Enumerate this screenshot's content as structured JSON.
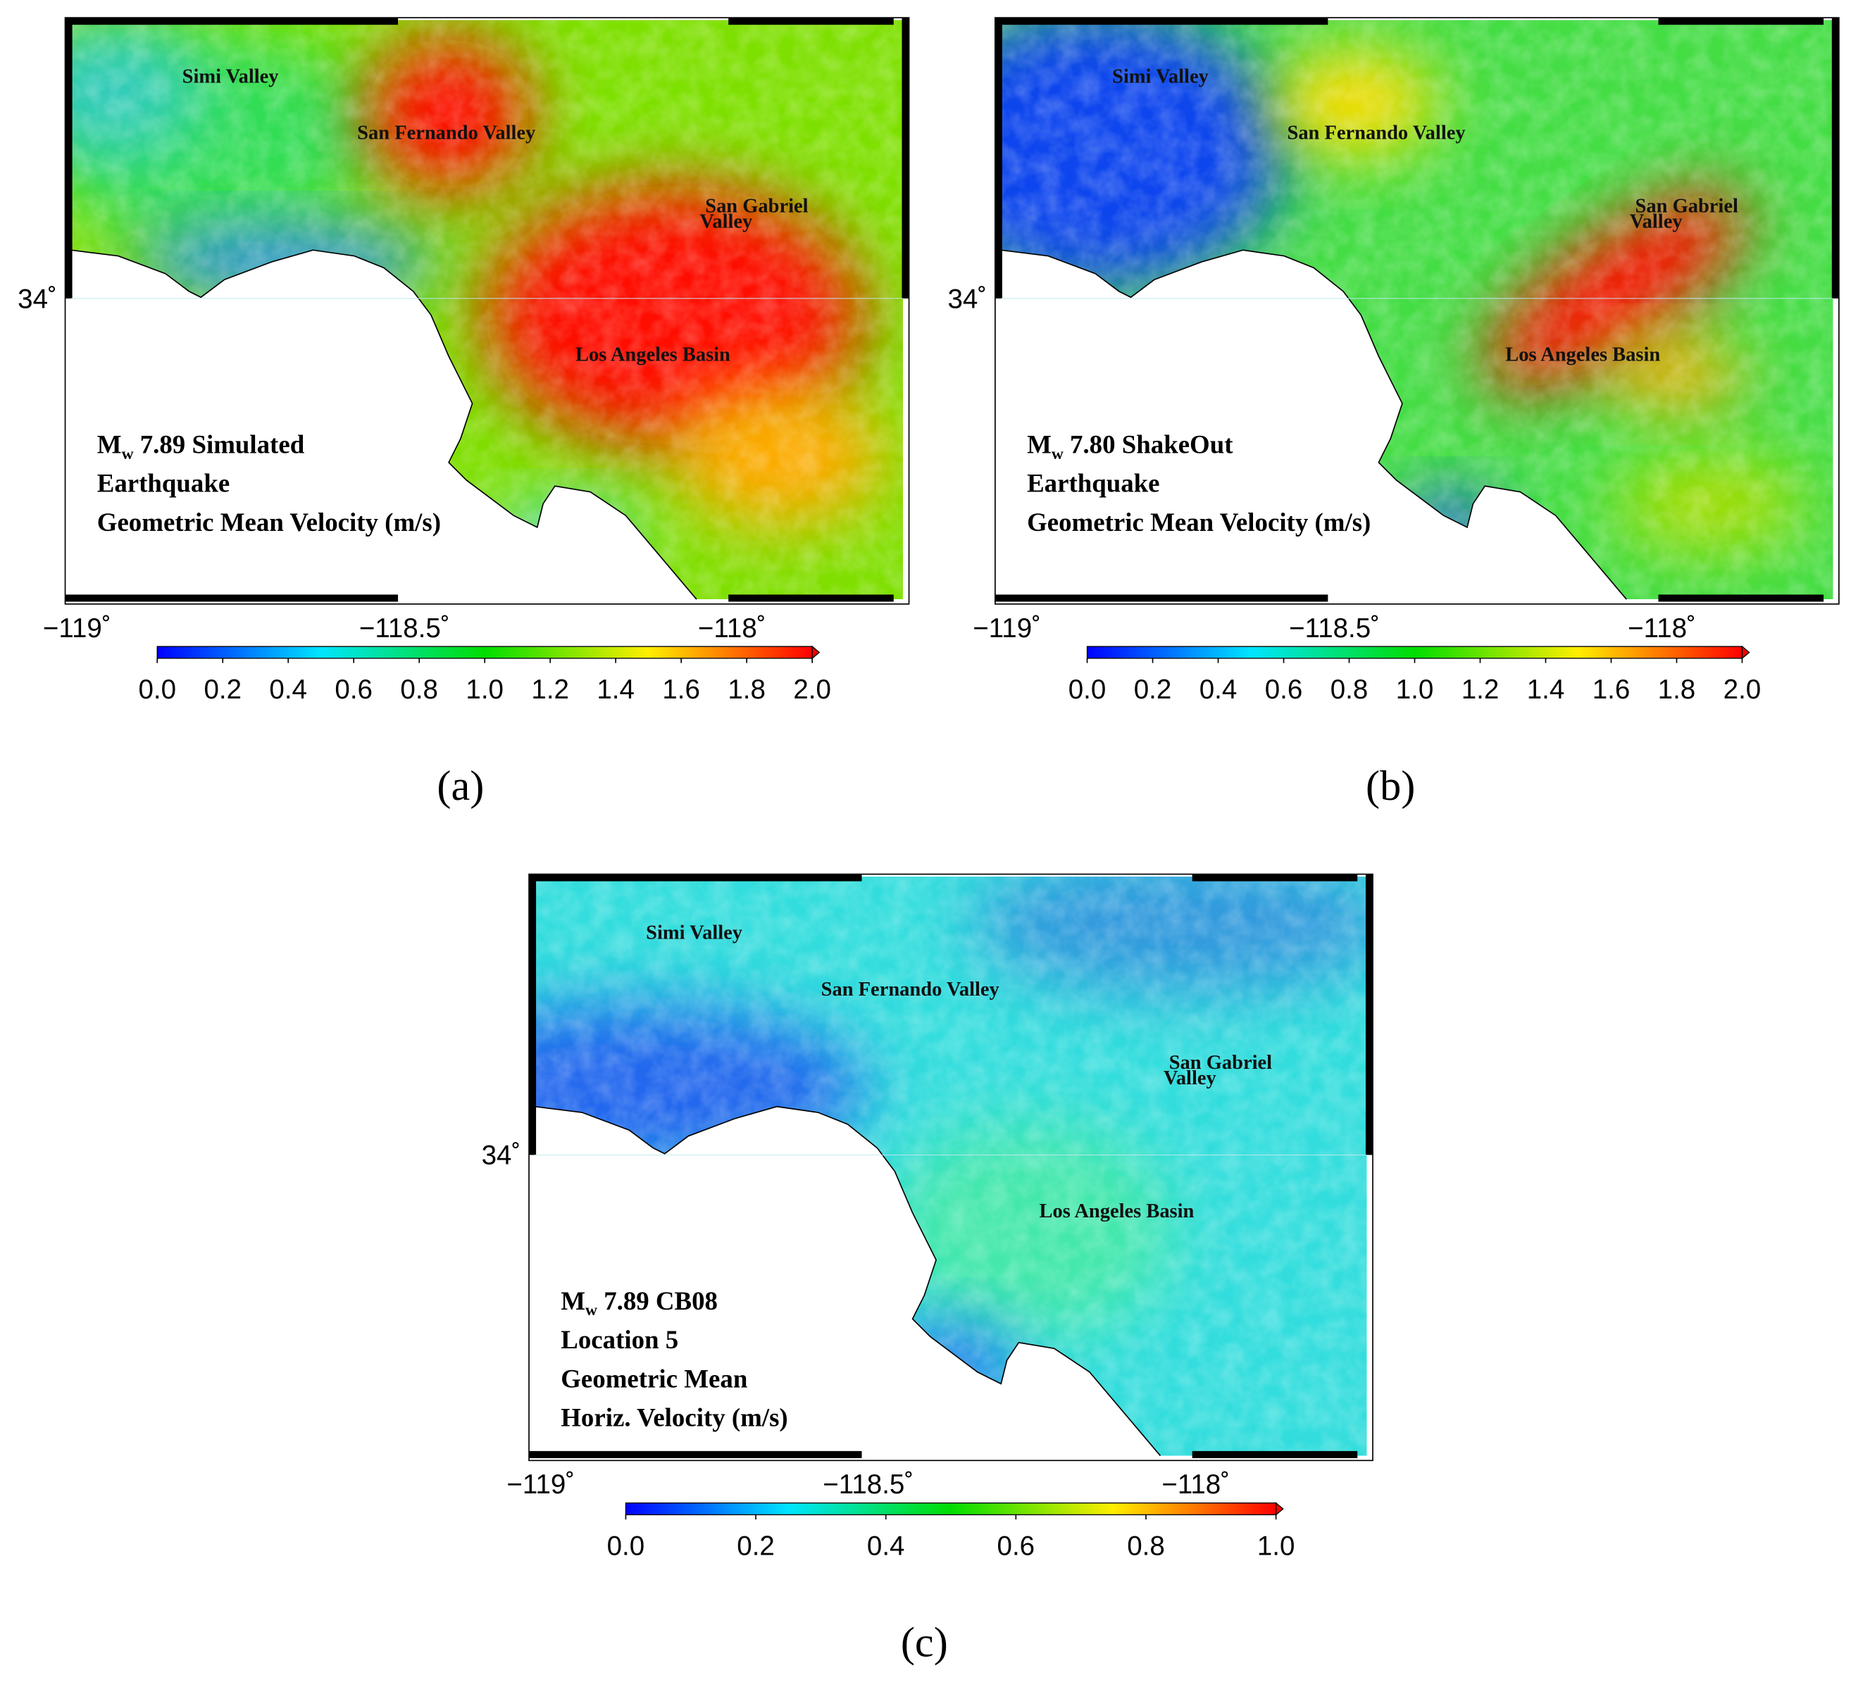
{
  "panels": [
    {
      "caption": "(a)",
      "info": {
        "symbol": "M",
        "subscript": "w",
        "rest": " 7.89 Simulated",
        "lines": [
          "Earthquake",
          "Geometric Mean Velocity (m/s)"
        ]
      },
      "places": [
        "Simi Valley",
        "San Fernando Valley",
        "San Gabriel",
        "Valley",
        "Los Angeles Basin"
      ],
      "lon_ticks": [
        {
          "value": -119,
          "label": "−119˚"
        },
        {
          "value": -118.5,
          "label": "−118.5˚"
        },
        {
          "value": -118,
          "label": "−118˚"
        }
      ],
      "lat_ticks": [
        {
          "value": 34,
          "label": "34˚"
        }
      ],
      "colorbar_ticks": [
        {
          "value": 0,
          "label": "0.0"
        },
        {
          "value": 0.2,
          "label": "0.2"
        },
        {
          "value": 0.4,
          "label": "0.4"
        },
        {
          "value": 0.6,
          "label": "0.6"
        },
        {
          "value": 0.8,
          "label": "0.8"
        },
        {
          "value": 1,
          "label": "1.0"
        },
        {
          "value": 1.2,
          "label": "1.2"
        },
        {
          "value": 1.4,
          "label": "1.4"
        },
        {
          "value": 1.6,
          "label": "1.6"
        },
        {
          "value": 1.8,
          "label": "1.8"
        },
        {
          "value": 2,
          "label": "2.0"
        }
      ]
    },
    {
      "caption": "(b)",
      "info": {
        "symbol": "M",
        "subscript": "w",
        "rest": " 7.80 ShakeOut",
        "lines": [
          "Earthquake",
          "Geometric Mean Velocity (m/s)"
        ]
      },
      "places": [
        "Simi Valley",
        "San Fernando Valley",
        "San Gabriel",
        "Valley",
        "Los Angeles Basin"
      ],
      "lon_ticks": [
        {
          "value": -119,
          "label": "−119˚"
        },
        {
          "value": -118.5,
          "label": "−118.5˚"
        },
        {
          "value": -118,
          "label": "−118˚"
        }
      ],
      "lat_ticks": [
        {
          "value": 34,
          "label": "34˚"
        }
      ],
      "colorbar_ticks": [
        {
          "value": 0,
          "label": "0.0"
        },
        {
          "value": 0.2,
          "label": "0.2"
        },
        {
          "value": 0.4,
          "label": "0.4"
        },
        {
          "value": 0.6,
          "label": "0.6"
        },
        {
          "value": 0.8,
          "label": "0.8"
        },
        {
          "value": 1,
          "label": "1.0"
        },
        {
          "value": 1.2,
          "label": "1.2"
        },
        {
          "value": 1.4,
          "label": "1.4"
        },
        {
          "value": 1.6,
          "label": "1.6"
        },
        {
          "value": 1.8,
          "label": "1.8"
        },
        {
          "value": 2,
          "label": "2.0"
        }
      ]
    },
    {
      "caption": "(c)",
      "info": {
        "symbol": "M",
        "subscript": "w",
        "rest": " 7.89 CB08",
        "lines": [
          "Location 5",
          "Geometric Mean",
          "Horiz. Velocity (m/s)"
        ]
      },
      "places": [
        "Simi Valley",
        "San Fernando Valley",
        "San Gabriel",
        "Valley",
        "Los Angeles Basin"
      ],
      "lon_ticks": [
        {
          "value": -119,
          "label": "−119˚"
        },
        {
          "value": -118.5,
          "label": "−118.5˚"
        },
        {
          "value": -118,
          "label": "−118˚"
        }
      ],
      "lat_ticks": [
        {
          "value": 34,
          "label": "34˚"
        }
      ],
      "colorbar_ticks": [
        {
          "value": 0,
          "label": "0.0"
        },
        {
          "value": 0.2,
          "label": "0.2"
        },
        {
          "value": 0.4,
          "label": "0.4"
        },
        {
          "value": 0.6,
          "label": "0.6"
        },
        {
          "value": 0.8,
          "label": "0.8"
        },
        {
          "value": 1,
          "label": "1.0"
        }
      ]
    }
  ]
}
